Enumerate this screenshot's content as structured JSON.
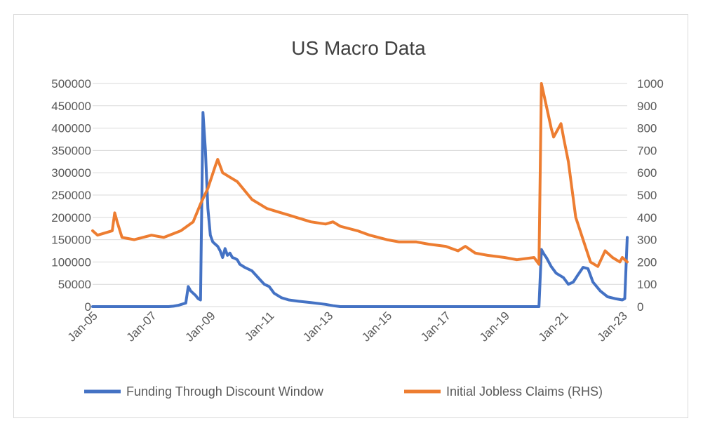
{
  "chart_data": {
    "type": "line",
    "title": "US Macro Data",
    "xlabel": "",
    "ylabel": "",
    "y2label": "",
    "grid": true,
    "legend_position": "bottom",
    "ylim": [
      0,
      500000
    ],
    "y2lim": [
      0,
      1000
    ],
    "yticks": [
      "0",
      "50000",
      "100000",
      "150000",
      "200000",
      "250000",
      "300000",
      "350000",
      "400000",
      "450000",
      "500000"
    ],
    "y2ticks": [
      "0",
      "100",
      "200",
      "300",
      "400",
      "500",
      "600",
      "700",
      "800",
      "900",
      "1000"
    ],
    "xticks": [
      "Jan-05",
      "Jan-07",
      "Jan-09",
      "Jan-11",
      "Jan-13",
      "Jan-15",
      "Jan-17",
      "Jan-19",
      "Jan-21",
      "Jan-23"
    ],
    "xrange": [
      "2005-01",
      "2023-03"
    ],
    "series": [
      {
        "name": "Funding Through Discount Window",
        "axis": "left",
        "color": "#4472c4",
        "x": [
          "2005-01",
          "2007-08",
          "2007-10",
          "2007-12",
          "2008-03",
          "2008-04",
          "2008-05",
          "2008-07",
          "2008-08",
          "2008-09",
          "2008-10",
          "2008-11",
          "2008-12",
          "2009-01",
          "2009-02",
          "2009-03",
          "2009-04",
          "2009-05",
          "2009-06",
          "2009-07",
          "2009-08",
          "2009-09",
          "2009-10",
          "2009-11",
          "2009-12",
          "2010-01",
          "2010-03",
          "2010-06",
          "2010-09",
          "2010-11",
          "2011-01",
          "2011-03",
          "2011-06",
          "2011-09",
          "2012-01",
          "2012-06",
          "2012-12",
          "2013-03",
          "2013-06",
          "2014-01",
          "2016-01",
          "2018-01",
          "2020-03",
          "2020-04",
          "2020-05",
          "2020-06",
          "2020-08",
          "2020-10",
          "2021-01",
          "2021-03",
          "2021-05",
          "2021-07",
          "2021-09",
          "2021-11",
          "2022-01",
          "2022-04",
          "2022-07",
          "2022-10",
          "2023-01",
          "2023-02",
          "2023-03"
        ],
        "values": [
          0,
          0,
          1000,
          3000,
          8000,
          45000,
          35000,
          25000,
          18000,
          15000,
          435000,
          350000,
          220000,
          160000,
          145000,
          140000,
          135000,
          125000,
          110000,
          130000,
          115000,
          120000,
          110000,
          108000,
          105000,
          95000,
          88000,
          80000,
          62000,
          50000,
          45000,
          30000,
          20000,
          15000,
          12000,
          9000,
          5000,
          2000,
          0,
          0,
          0,
          0,
          0,
          128000,
          118000,
          110000,
          90000,
          75000,
          65000,
          50000,
          55000,
          72000,
          88000,
          85000,
          55000,
          35000,
          22000,
          18000,
          15000,
          18000,
          155000
        ]
      },
      {
        "name": "Initial Jobless Claims (RHS)",
        "axis": "right",
        "color": "#ed7d31",
        "x": [
          "2005-01",
          "2005-03",
          "2005-06",
          "2005-09",
          "2005-10",
          "2005-11",
          "2006-01",
          "2006-06",
          "2007-01",
          "2007-06",
          "2008-01",
          "2008-06",
          "2008-09",
          "2008-12",
          "2009-03",
          "2009-04",
          "2009-06",
          "2009-09",
          "2009-12",
          "2010-03",
          "2010-06",
          "2010-09",
          "2010-12",
          "2011-03",
          "2011-06",
          "2011-09",
          "2011-12",
          "2012-06",
          "2012-12",
          "2013-03",
          "2013-06",
          "2014-01",
          "2014-06",
          "2015-01",
          "2015-06",
          "2016-01",
          "2016-06",
          "2017-01",
          "2017-06",
          "2017-09",
          "2018-01",
          "2018-06",
          "2019-01",
          "2019-06",
          "2020-01",
          "2020-03",
          "2020-04",
          "2020-06",
          "2020-08",
          "2020-09",
          "2020-12",
          "2021-01",
          "2021-03",
          "2021-06",
          "2021-09",
          "2021-12",
          "2022-03",
          "2022-06",
          "2022-09",
          "2022-12",
          "2023-01",
          "2023-03"
        ],
        "values": [
          340,
          320,
          330,
          340,
          420,
          380,
          310,
          300,
          320,
          310,
          340,
          380,
          460,
          530,
          630,
          660,
          600,
          580,
          560,
          520,
          480,
          460,
          440,
          430,
          420,
          410,
          400,
          380,
          370,
          380,
          360,
          340,
          320,
          300,
          290,
          290,
          280,
          270,
          250,
          270,
          240,
          230,
          220,
          210,
          220,
          190,
          1000,
          900,
          800,
          760,
          820,
          760,
          650,
          400,
          300,
          200,
          180,
          250,
          220,
          200,
          220,
          200
        ]
      }
    ]
  }
}
